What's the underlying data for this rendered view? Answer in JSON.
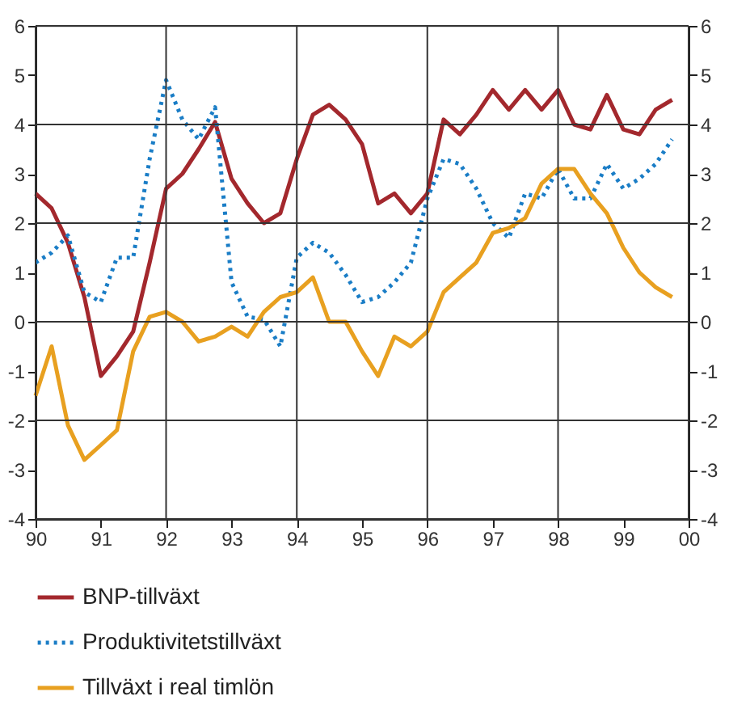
{
  "chart_data": {
    "type": "line",
    "x": [
      "1990-01",
      "1990-04",
      "1990-07",
      "1990-10",
      "1991-01",
      "1991-04",
      "1991-07",
      "1991-10",
      "1992-01",
      "1992-04",
      "1992-07",
      "1992-10",
      "1993-01",
      "1993-04",
      "1993-07",
      "1993-10",
      "1994-01",
      "1994-04",
      "1994-07",
      "1994-10",
      "1995-01",
      "1995-04",
      "1995-07",
      "1995-10",
      "1996-01",
      "1996-04",
      "1996-07",
      "1996-10",
      "1997-01",
      "1997-04",
      "1997-07",
      "1997-10",
      "1998-01",
      "1998-04",
      "1998-07",
      "1998-10",
      "1999-01",
      "1999-04",
      "1999-07",
      "1999-10"
    ],
    "series": [
      {
        "name": "BNP-tillväxt",
        "color": "#a3282d",
        "line_style": "solid",
        "values": [
          2.6,
          2.3,
          1.6,
          0.5,
          -1.1,
          -0.7,
          -0.2,
          1.2,
          2.7,
          3.0,
          3.5,
          4.05,
          2.9,
          2.4,
          2.0,
          2.2,
          3.3,
          4.2,
          4.4,
          4.1,
          3.6,
          2.4,
          2.6,
          2.2,
          2.6,
          4.1,
          3.8,
          4.2,
          4.7,
          4.3,
          4.7,
          4.3,
          4.7,
          4.0,
          3.9,
          4.6,
          3.9,
          3.8,
          4.3,
          4.5
        ]
      },
      {
        "name": "Produktivitetstillväxt",
        "color": "#1a7dc6",
        "line_style": "dotted",
        "values": [
          1.2,
          1.4,
          1.75,
          0.6,
          0.4,
          1.3,
          1.3,
          3.3,
          4.9,
          4.1,
          3.7,
          4.35,
          0.8,
          0.1,
          0.05,
          -0.5,
          1.3,
          1.6,
          1.4,
          0.95,
          0.4,
          0.5,
          0.8,
          1.2,
          2.5,
          3.3,
          3.2,
          2.7,
          2.0,
          1.7,
          2.6,
          2.5,
          3.1,
          2.5,
          2.5,
          3.2,
          2.7,
          2.9,
          3.2,
          3.7
        ]
      },
      {
        "name": "Tillväxt i real timlön",
        "color": "#e8a020",
        "line_style": "solid",
        "values": [
          -1.5,
          -0.5,
          -2.1,
          -2.8,
          -2.5,
          -2.2,
          -0.6,
          0.1,
          0.2,
          0.0,
          -0.4,
          -0.3,
          -0.1,
          -0.3,
          0.2,
          0.5,
          0.6,
          0.9,
          0.0,
          0.0,
          -0.6,
          -1.1,
          -0.3,
          -0.5,
          -0.2,
          0.6,
          0.9,
          1.2,
          1.8,
          1.9,
          2.1,
          2.8,
          3.1,
          3.1,
          2.6,
          2.2,
          1.5,
          1.0,
          0.7,
          0.5
        ]
      }
    ],
    "xlim": [
      "1990",
      "2000"
    ],
    "xticks": [
      {
        "value": "1990",
        "label": "90"
      },
      {
        "value": "1991",
        "label": "91"
      },
      {
        "value": "1992",
        "label": "92"
      },
      {
        "value": "1993",
        "label": "93"
      },
      {
        "value": "1994",
        "label": "94"
      },
      {
        "value": "1995",
        "label": "95"
      },
      {
        "value": "1996",
        "label": "96"
      },
      {
        "value": "1997",
        "label": "97"
      },
      {
        "value": "1998",
        "label": "98"
      },
      {
        "value": "1999",
        "label": "99"
      },
      {
        "value": "2000",
        "label": "00"
      }
    ],
    "ylim": [
      -4,
      6
    ],
    "yticks": [
      -4,
      -3,
      -2,
      -1,
      0,
      1,
      2,
      3,
      4,
      5,
      6
    ],
    "y2lim": [
      -4,
      6
    ],
    "y2ticks": [
      -4,
      -3,
      -2,
      -1,
      0,
      1,
      2,
      3,
      4,
      5,
      6
    ],
    "grid": true,
    "legend": "bottom",
    "marker": "none"
  }
}
